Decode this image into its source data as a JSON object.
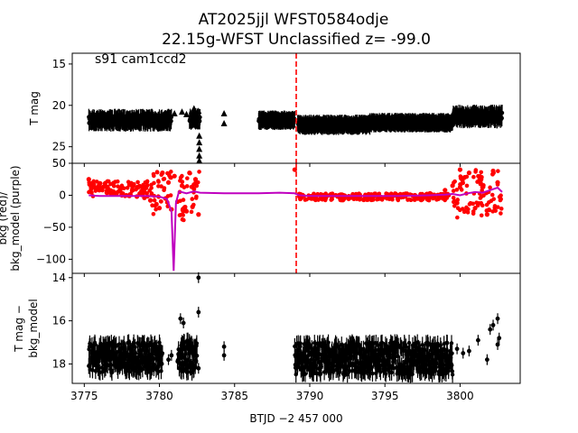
{
  "title": {
    "line1": "AT2025jjl  WFST0584odje",
    "line2": "22.15g-WFST Unclassified z= -99.0"
  },
  "colors": {
    "points": "#000000",
    "bkg": "#ff0000",
    "bkg_model": "#bf00bf",
    "marker_line": "#ff0000"
  },
  "chart_data": [
    {
      "type": "scatter",
      "panel": "top",
      "annotation": "s91 cam1ccd2",
      "ylabel": "T mag",
      "yticks": [
        "15",
        "20",
        "25"
      ],
      "ylim": [
        27.0,
        13.7
      ],
      "y_inverted": true,
      "xlim": [
        3774.2,
        3804.0
      ],
      "vertical_line_x": 3789.1,
      "series": [
        {
          "marker": "dot",
          "segments": [
            {
              "x": [
                3775.3,
                3780.8
              ],
              "y": [
                21.4,
                22.2
              ]
            },
            {
              "x": [
                3782.0,
                3782.7
              ],
              "y": [
                21.3,
                22.0
              ]
            },
            {
              "x": [
                3786.6,
                3789.0
              ],
              "y": [
                21.6,
                22.0
              ]
            },
            {
              "x": [
                3789.2,
                3794.0
              ],
              "y": [
                22.1,
                22.6
              ]
            },
            {
              "x": [
                3794.0,
                3799.5
              ],
              "y": [
                21.9,
                22.3
              ]
            },
            {
              "x": [
                3799.5,
                3802.8
              ],
              "y": [
                20.9,
                21.8
              ]
            }
          ]
        },
        {
          "marker": "triangle",
          "points": [
            {
              "x": 3781.0,
              "y": 21.0
            },
            {
              "x": 3781.5,
              "y": 20.8
            },
            {
              "x": 3781.8,
              "y": 21.1
            },
            {
              "x": 3782.3,
              "y": 20.4
            },
            {
              "x": 3782.6,
              "y": 20.7
            },
            {
              "x": 3782.65,
              "y": 23.7
            },
            {
              "x": 3782.65,
              "y": 24.5
            },
            {
              "x": 3782.65,
              "y": 25.3
            },
            {
              "x": 3782.65,
              "y": 26.1
            },
            {
              "x": 3782.65,
              "y": 26.7
            },
            {
              "x": 3784.3,
              "y": 21.0
            },
            {
              "x": 3784.3,
              "y": 22.2
            }
          ]
        }
      ]
    },
    {
      "type": "scatter",
      "panel": "middle",
      "ylabel_line1": "bkg (red)/",
      "ylabel_line2": "bkg_model (purple)",
      "yticks": [
        "50",
        "0",
        "−50",
        "−100"
      ],
      "ylim": [
        -122,
        50
      ],
      "xlim": [
        3774.2,
        3804.0
      ],
      "vertical_line_x": 3789.1,
      "series": [
        {
          "name": "bkg",
          "marker": "dot",
          "x": [
            3775.3,
            3775.5,
            3775.7,
            3776.0,
            3776.5,
            3777.0,
            3777.5,
            3778.0,
            3778.5,
            3779.0,
            3779.4,
            3779.8,
            3780.0,
            3780.2,
            3780.4,
            3780.6,
            3780.8,
            3781.0,
            3781.2,
            3781.5,
            3781.8,
            3782.0,
            3782.2,
            3782.4,
            3782.6,
            3789.0,
            3789.3,
            3790.0,
            3791.0,
            3792.0,
            3793.0,
            3794.0,
            3795.0,
            3796.0,
            3797.0,
            3798.0,
            3799.0,
            3799.5,
            3799.8,
            3800.0,
            3800.3,
            3800.6,
            3801.0,
            3801.4,
            3801.8,
            3802.2,
            3802.5
          ],
          "y": [
            25,
            18,
            12,
            8,
            4,
            2,
            0,
            -1,
            -2,
            -4,
            -8,
            -14,
            -20,
            35,
            -5,
            20,
            -22,
            30,
            -10,
            15,
            -25,
            35,
            -18,
            25,
            -30,
            40,
            2,
            -2,
            -3,
            -4,
            -4,
            -3,
            -3,
            -2,
            0,
            3,
            8,
            15,
            -12,
            40,
            28,
            35,
            -20,
            25,
            -30,
            38,
            20
          ]
        },
        {
          "name": "bkg_model",
          "type": "line",
          "x": [
            3775.3,
            3776.0,
            3777.0,
            3778.0,
            3779.0,
            3780.0,
            3780.5,
            3780.8,
            3780.95,
            3781.1,
            3781.3,
            3781.8,
            3782.3,
            3782.7,
            3784.3,
            3786.6,
            3788.0,
            3789.0,
            3789.3,
            3790.0,
            3792.0,
            3794.0,
            3796.0,
            3798.0,
            3799.0,
            3799.5,
            3800.0,
            3800.5,
            3801.0,
            3801.5,
            3802.0,
            3802.5,
            3802.8
          ],
          "y": [
            0,
            -1,
            -1,
            -1,
            -1,
            -2,
            -6,
            -25,
            -118,
            -12,
            6,
            3,
            6,
            4,
            3,
            3,
            4,
            3,
            0,
            -1,
            -1,
            -1,
            -1,
            0,
            1,
            2,
            0,
            3,
            5,
            4,
            8,
            12,
            5
          ]
        }
      ]
    },
    {
      "type": "scatter",
      "panel": "bottom",
      "ylabel_line1": "T mag −",
      "ylabel_line2": "bkg_model",
      "yticks": [
        "14",
        "16",
        "18"
      ],
      "ylim": [
        18.9,
        13.8
      ],
      "y_inverted": true,
      "xlim": [
        3774.2,
        3804.0
      ],
      "xticks": [
        "3775",
        "3780",
        "3785",
        "3790",
        "3795",
        "3800"
      ],
      "xticks_values": [
        3775,
        3780,
        3785,
        3790,
        3795,
        3800
      ],
      "xlabel": "BTJD −2 457 000",
      "series": [
        {
          "marker": "dot",
          "segments": [
            {
              "x": [
                3775.3,
                3780.2
              ],
              "y": [
                17.0,
                18.4
              ]
            },
            {
              "x": [
                3781.2,
                3782.5
              ],
              "y": [
                16.9,
                18.4
              ]
            },
            {
              "x": [
                3789.0,
                3799.5
              ],
              "y": [
                17.0,
                18.5
              ]
            }
          ],
          "points": [
            {
              "x": 3780.6,
              "y": 17.8
            },
            {
              "x": 3780.8,
              "y": 17.6
            },
            {
              "x": 3781.4,
              "y": 15.9
            },
            {
              "x": 3781.6,
              "y": 16.1
            },
            {
              "x": 3782.6,
              "y": 14.0
            },
            {
              "x": 3782.6,
              "y": 15.6
            },
            {
              "x": 3782.6,
              "y": 18.2
            },
            {
              "x": 3784.3,
              "y": 17.2
            },
            {
              "x": 3784.3,
              "y": 17.6
            },
            {
              "x": 3799.8,
              "y": 17.3
            },
            {
              "x": 3800.2,
              "y": 17.5
            },
            {
              "x": 3800.6,
              "y": 17.4
            },
            {
              "x": 3801.2,
              "y": 16.9
            },
            {
              "x": 3801.8,
              "y": 17.8
            },
            {
              "x": 3802.0,
              "y": 16.4
            },
            {
              "x": 3802.2,
              "y": 16.2
            },
            {
              "x": 3802.5,
              "y": 15.9
            },
            {
              "x": 3802.5,
              "y": 17.1
            },
            {
              "x": 3802.6,
              "y": 16.8
            }
          ]
        }
      ]
    }
  ]
}
